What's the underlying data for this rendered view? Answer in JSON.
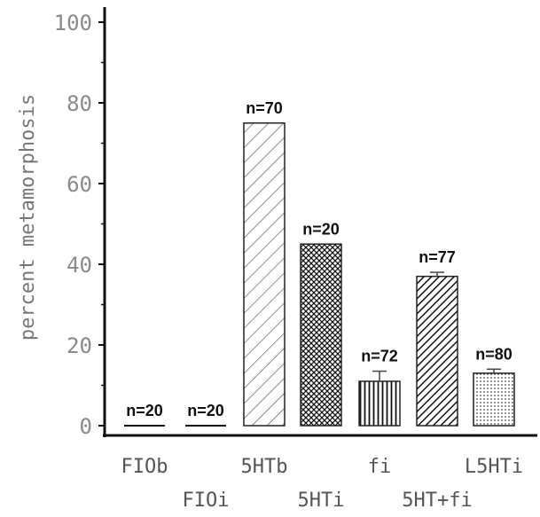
{
  "chart_data": {
    "type": "bar",
    "title": "",
    "xlabel": "",
    "ylabel": "percent metamorphosis",
    "ylim": [
      0,
      100
    ],
    "yticks": [
      "0",
      "20",
      "40",
      "60",
      "80",
      "100"
    ],
    "grid": false,
    "legend": "none",
    "categories": [
      "FIOb",
      "FIOi",
      "5HTb",
      "5HTi",
      "fi",
      "5HT+fi",
      "L5HTi"
    ],
    "values": [
      0,
      0,
      75,
      45,
      11,
      37,
      13
    ],
    "errors": [
      0,
      0,
      0,
      0,
      2.5,
      1,
      1
    ],
    "n_labels": [
      "n=20",
      "n=20",
      "n=70",
      "n=20",
      "n=72",
      "n=77",
      "n=80"
    ],
    "patterns": [
      "none",
      "none",
      "wide-diagonal",
      "crosshatch",
      "vertical-lines",
      "dense-diagonal",
      "dots"
    ],
    "colors": {
      "axis": "#111111",
      "bar_stroke": "#222222",
      "tick_text": "#8a8a8a",
      "category_text": "#555555"
    }
  }
}
